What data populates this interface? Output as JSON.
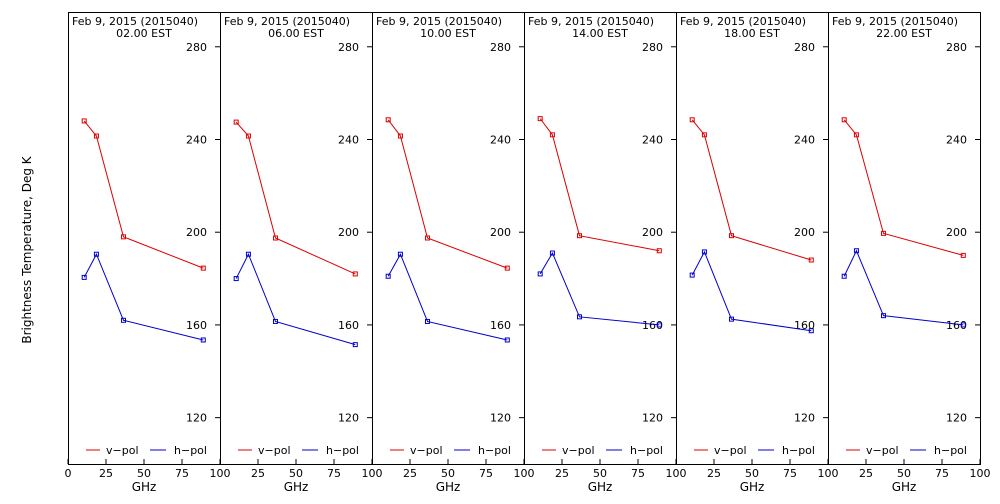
{
  "ylabel": "Brightness Temperature, Deg K",
  "xlabel": "GHz",
  "date_label": "Feb  9, 2015 (2015040)",
  "legend": {
    "v": "v−pol",
    "h": "h−pol"
  },
  "colors": {
    "v": "#dd0000",
    "h": "#0000cc",
    "axis": "#000000",
    "background": "#ffffff"
  },
  "chart_data": [
    {
      "type": "line",
      "title": "Feb  9, 2015 (2015040)",
      "subtitle": "02.00 EST",
      "x": [
        10.65,
        18.7,
        36.5,
        89.0
      ],
      "xlim": [
        0,
        100
      ],
      "ylim": [
        100,
        295
      ],
      "xticks": [
        0,
        25,
        50,
        75,
        100
      ],
      "xtick_labels": [
        "0",
        "25",
        "50",
        "75",
        "100"
      ],
      "yticks": [
        120,
        160,
        200,
        240,
        280
      ],
      "ytick_labels": [
        "120",
        "160",
        "200",
        "240",
        "280"
      ],
      "series": [
        {
          "name": "v−pol",
          "values": [
            248.0,
            241.5,
            198.0,
            184.5
          ]
        },
        {
          "name": "h−pol",
          "values": [
            180.5,
            190.5,
            162.0,
            153.5
          ]
        }
      ]
    },
    {
      "type": "line",
      "title": "Feb  9, 2015 (2015040)",
      "subtitle": "06.00 EST",
      "x": [
        10.65,
        18.7,
        36.5,
        89.0
      ],
      "xlim": [
        0,
        100
      ],
      "ylim": [
        100,
        295
      ],
      "xticks": [
        0,
        25,
        50,
        75,
        100
      ],
      "xtick_labels": [
        "0",
        "25",
        "50",
        "75",
        "100"
      ],
      "yticks": [
        120,
        160,
        200,
        240,
        280
      ],
      "ytick_labels": [
        "120",
        "160",
        "200",
        "240",
        "280"
      ],
      "series": [
        {
          "name": "v−pol",
          "values": [
            247.5,
            241.5,
            197.5,
            182.0
          ]
        },
        {
          "name": "h−pol",
          "values": [
            180.0,
            190.5,
            161.5,
            151.5
          ]
        }
      ]
    },
    {
      "type": "line",
      "title": "Feb  9, 2015 (2015040)",
      "subtitle": "10.00 EST",
      "x": [
        10.65,
        18.7,
        36.5,
        89.0
      ],
      "xlim": [
        0,
        100
      ],
      "ylim": [
        100,
        295
      ],
      "xticks": [
        0,
        25,
        50,
        75,
        100
      ],
      "xtick_labels": [
        "0",
        "25",
        "50",
        "75",
        "100"
      ],
      "yticks": [
        120,
        160,
        200,
        240,
        280
      ],
      "ytick_labels": [
        "120",
        "160",
        "200",
        "240",
        "280"
      ],
      "series": [
        {
          "name": "v−pol",
          "values": [
            248.5,
            241.5,
            197.5,
            184.5
          ]
        },
        {
          "name": "h−pol",
          "values": [
            181.0,
            190.5,
            161.5,
            153.5
          ]
        }
      ]
    },
    {
      "type": "line",
      "title": "Feb  9, 2015 (2015040)",
      "subtitle": "14.00 EST",
      "x": [
        10.65,
        18.7,
        36.5,
        89.0
      ],
      "xlim": [
        0,
        100
      ],
      "ylim": [
        100,
        295
      ],
      "xticks": [
        0,
        25,
        50,
        75,
        100
      ],
      "xtick_labels": [
        "0",
        "25",
        "50",
        "75",
        "100"
      ],
      "yticks": [
        120,
        160,
        200,
        240,
        280
      ],
      "ytick_labels": [
        "120",
        "160",
        "200",
        "240",
        "280"
      ],
      "series": [
        {
          "name": "v−pol",
          "values": [
            249.0,
            242.0,
            198.5,
            192.0
          ]
        },
        {
          "name": "h−pol",
          "values": [
            182.0,
            191.0,
            163.5,
            160.0
          ]
        }
      ]
    },
    {
      "type": "line",
      "title": "Feb  9, 2015 (2015040)",
      "subtitle": "18.00 EST",
      "x": [
        10.65,
        18.7,
        36.5,
        89.0
      ],
      "xlim": [
        0,
        100
      ],
      "ylim": [
        100,
        295
      ],
      "xticks": [
        0,
        25,
        50,
        75,
        100
      ],
      "xtick_labels": [
        "0",
        "25",
        "50",
        "75",
        "100"
      ],
      "yticks": [
        120,
        160,
        200,
        240,
        280
      ],
      "ytick_labels": [
        "120",
        "160",
        "200",
        "240",
        "280"
      ],
      "series": [
        {
          "name": "v−pol",
          "values": [
            248.5,
            242.0,
            198.5,
            188.0
          ]
        },
        {
          "name": "h−pol",
          "values": [
            181.5,
            191.5,
            162.5,
            157.5
          ]
        }
      ]
    },
    {
      "type": "line",
      "title": "Feb  9, 2015 (2015040)",
      "subtitle": "22.00 EST",
      "x": [
        10.65,
        18.7,
        36.5,
        89.0
      ],
      "xlim": [
        0,
        100
      ],
      "ylim": [
        100,
        295
      ],
      "xticks": [
        0,
        25,
        50,
        75,
        100
      ],
      "xtick_labels": [
        "0",
        "25",
        "50",
        "75",
        "100"
      ],
      "yticks": [
        120,
        160,
        200,
        240,
        280
      ],
      "ytick_labels": [
        "120",
        "160",
        "200",
        "240",
        "280"
      ],
      "series": [
        {
          "name": "v−pol",
          "values": [
            248.5,
            242.0,
            199.5,
            190.0
          ]
        },
        {
          "name": "h−pol",
          "values": [
            181.0,
            192.0,
            164.0,
            160.0
          ]
        }
      ]
    }
  ]
}
